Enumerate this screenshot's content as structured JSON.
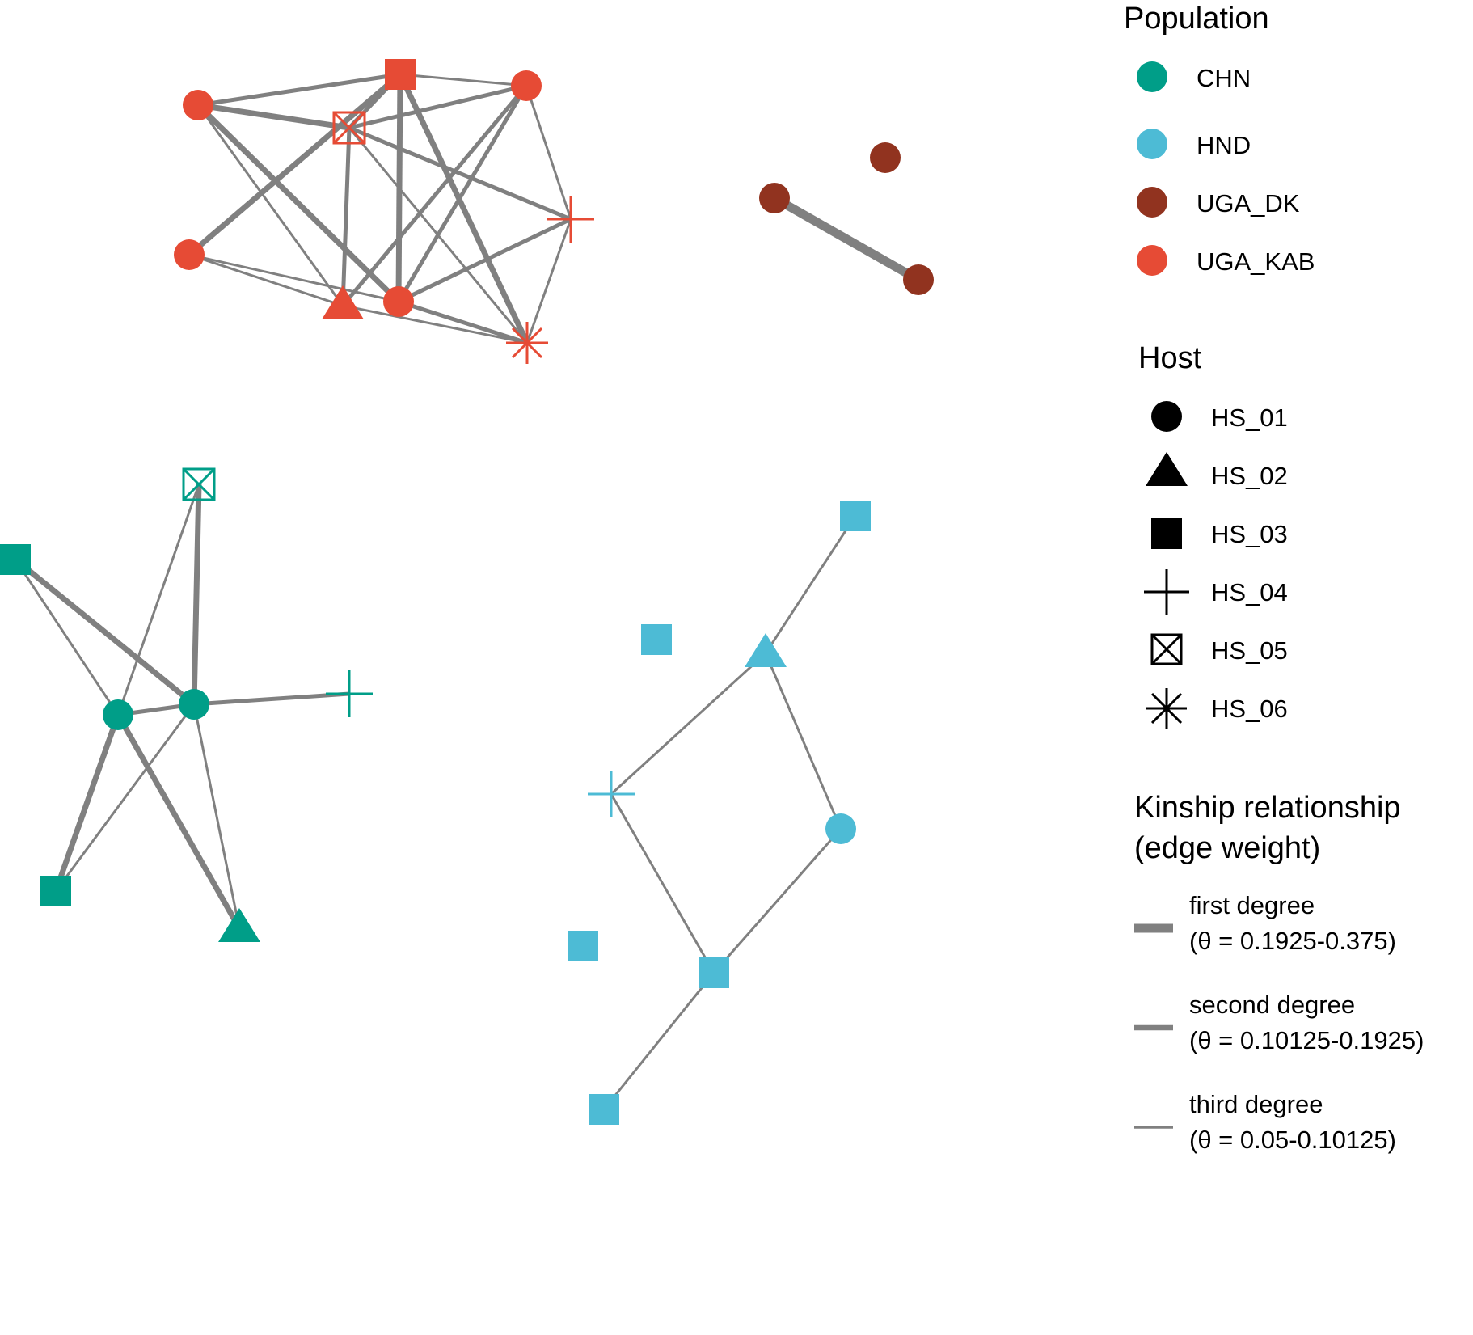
{
  "colors": {
    "edge": "#808080",
    "CHN": "#009E88",
    "HND": "#4DBBD5",
    "UGA_DK": "#91331F",
    "UGA_KAB": "#E64B35",
    "legend_symbol": "#000000"
  },
  "network": {
    "node_shapes": {
      "HS_01": "circle",
      "HS_02": "triangle",
      "HS_03": "square",
      "HS_04": "plus",
      "HS_05": "boxed-x",
      "HS_06": "asterisk"
    },
    "components": [
      {
        "population": "UGA_KAB",
        "nodes": [
          {
            "id": "kab-a",
            "host": "HS_01"
          },
          {
            "id": "kab-b",
            "host": "HS_03"
          },
          {
            "id": "kab-c",
            "host": "HS_01"
          },
          {
            "id": "kab-d",
            "host": "HS_05"
          },
          {
            "id": "kab-e",
            "host": "HS_04"
          },
          {
            "id": "kab-f",
            "host": "HS_01"
          },
          {
            "id": "kab-g",
            "host": "HS_02"
          },
          {
            "id": "kab-h",
            "host": "HS_01"
          },
          {
            "id": "kab-i",
            "host": "HS_06"
          }
        ],
        "edges": [
          {
            "source": "kab-a",
            "target": "kab-b",
            "degree": "second"
          },
          {
            "source": "kab-a",
            "target": "kab-d",
            "degree": "first"
          },
          {
            "source": "kab-a",
            "target": "kab-h",
            "degree": "first"
          },
          {
            "source": "kab-a",
            "target": "kab-g",
            "degree": "third"
          },
          {
            "source": "kab-b",
            "target": "kab-c",
            "degree": "third"
          },
          {
            "source": "kab-b",
            "target": "kab-d",
            "degree": "second"
          },
          {
            "source": "kab-b",
            "target": "kab-f",
            "degree": "first"
          },
          {
            "source": "kab-b",
            "target": "kab-h",
            "degree": "first"
          },
          {
            "source": "kab-b",
            "target": "kab-i",
            "degree": "first"
          },
          {
            "source": "kab-c",
            "target": "kab-d",
            "degree": "second"
          },
          {
            "source": "kab-c",
            "target": "kab-e",
            "degree": "third"
          },
          {
            "source": "kab-c",
            "target": "kab-g",
            "degree": "second"
          },
          {
            "source": "kab-c",
            "target": "kab-h",
            "degree": "second"
          },
          {
            "source": "kab-d",
            "target": "kab-e",
            "degree": "second"
          },
          {
            "source": "kab-d",
            "target": "kab-g",
            "degree": "second"
          },
          {
            "source": "kab-d",
            "target": "kab-i",
            "degree": "third"
          },
          {
            "source": "kab-e",
            "target": "kab-h",
            "degree": "second"
          },
          {
            "source": "kab-e",
            "target": "kab-i",
            "degree": "third"
          },
          {
            "source": "kab-f",
            "target": "kab-g",
            "degree": "third"
          },
          {
            "source": "kab-f",
            "target": "kab-h",
            "degree": "third"
          },
          {
            "source": "kab-g",
            "target": "kab-i",
            "degree": "third"
          },
          {
            "source": "kab-h",
            "target": "kab-i",
            "degree": "second"
          }
        ]
      },
      {
        "population": "UGA_DK",
        "nodes": [
          {
            "id": "dk-a",
            "host": "HS_01"
          },
          {
            "id": "dk-b",
            "host": "HS_01"
          },
          {
            "id": "dk-c",
            "host": "HS_01"
          }
        ],
        "edges": [
          {
            "source": "dk-b",
            "target": "dk-c",
            "degree": "first",
            "strength": "strong"
          }
        ]
      },
      {
        "population": "CHN",
        "nodes": [
          {
            "id": "chn-a",
            "host": "HS_05"
          },
          {
            "id": "chn-b",
            "host": "HS_03"
          },
          {
            "id": "chn-c",
            "host": "HS_01"
          },
          {
            "id": "chn-d",
            "host": "HS_01"
          },
          {
            "id": "chn-e",
            "host": "HS_04"
          },
          {
            "id": "chn-f",
            "host": "HS_03"
          },
          {
            "id": "chn-g",
            "host": "HS_02"
          }
        ],
        "edges": [
          {
            "source": "chn-a",
            "target": "chn-d",
            "degree": "first"
          },
          {
            "source": "chn-a",
            "target": "chn-c",
            "degree": "third"
          },
          {
            "source": "chn-b",
            "target": "chn-d",
            "degree": "first"
          },
          {
            "source": "chn-b",
            "target": "chn-c",
            "degree": "third"
          },
          {
            "source": "chn-c",
            "target": "chn-d",
            "degree": "second"
          },
          {
            "source": "chn-d",
            "target": "chn-e",
            "degree": "second"
          },
          {
            "source": "chn-c",
            "target": "chn-f",
            "degree": "first"
          },
          {
            "source": "chn-c",
            "target": "chn-g",
            "degree": "first"
          },
          {
            "source": "chn-d",
            "target": "chn-f",
            "degree": "third"
          },
          {
            "source": "chn-d",
            "target": "chn-g",
            "degree": "third"
          }
        ]
      },
      {
        "population": "HND",
        "nodes": [
          {
            "id": "hnd-a",
            "host": "HS_03"
          },
          {
            "id": "hnd-b",
            "host": "HS_03"
          },
          {
            "id": "hnd-c",
            "host": "HS_02"
          },
          {
            "id": "hnd-d",
            "host": "HS_04"
          },
          {
            "id": "hnd-e",
            "host": "HS_01"
          },
          {
            "id": "hnd-f",
            "host": "HS_03"
          },
          {
            "id": "hnd-g",
            "host": "HS_03"
          },
          {
            "id": "hnd-h",
            "host": "HS_03"
          }
        ],
        "edges": [
          {
            "source": "hnd-a",
            "target": "hnd-c",
            "degree": "third"
          },
          {
            "source": "hnd-c",
            "target": "hnd-d",
            "degree": "third"
          },
          {
            "source": "hnd-c",
            "target": "hnd-e",
            "degree": "third"
          },
          {
            "source": "hnd-d",
            "target": "hnd-g",
            "degree": "third"
          },
          {
            "source": "hnd-e",
            "target": "hnd-g",
            "degree": "third"
          },
          {
            "source": "hnd-g",
            "target": "hnd-h",
            "degree": "third"
          }
        ]
      }
    ]
  },
  "legend": {
    "population": {
      "title": "Population",
      "items": [
        {
          "key": "CHN",
          "label": "CHN"
        },
        {
          "key": "HND",
          "label": "HND"
        },
        {
          "key": "UGA_DK",
          "label": "UGA_DK"
        },
        {
          "key": "UGA_KAB",
          "label": "UGA_KAB"
        }
      ]
    },
    "host": {
      "title": "Host",
      "items": [
        {
          "key": "HS_01",
          "label": "HS_01",
          "shape": "circle"
        },
        {
          "key": "HS_02",
          "label": "HS_02",
          "shape": "triangle"
        },
        {
          "key": "HS_03",
          "label": "HS_03",
          "shape": "square"
        },
        {
          "key": "HS_04",
          "label": "HS_04",
          "shape": "plus"
        },
        {
          "key": "HS_05",
          "label": "HS_05",
          "shape": "boxed-x"
        },
        {
          "key": "HS_06",
          "label": "HS_06",
          "shape": "asterisk"
        }
      ]
    },
    "kinship": {
      "title_line1": "Kinship relationship",
      "title_line2": "(edge weight)",
      "items": [
        {
          "degree": "first",
          "label_line1": "first degree",
          "label_line2": "(θ = 0.1925-0.375)"
        },
        {
          "degree": "second",
          "label_line1": "second degree",
          "label_line2": "(θ = 0.10125-0.1925)"
        },
        {
          "degree": "third",
          "label_line1": "third degree",
          "label_line2": "(θ = 0.05-0.10125)"
        }
      ]
    }
  }
}
